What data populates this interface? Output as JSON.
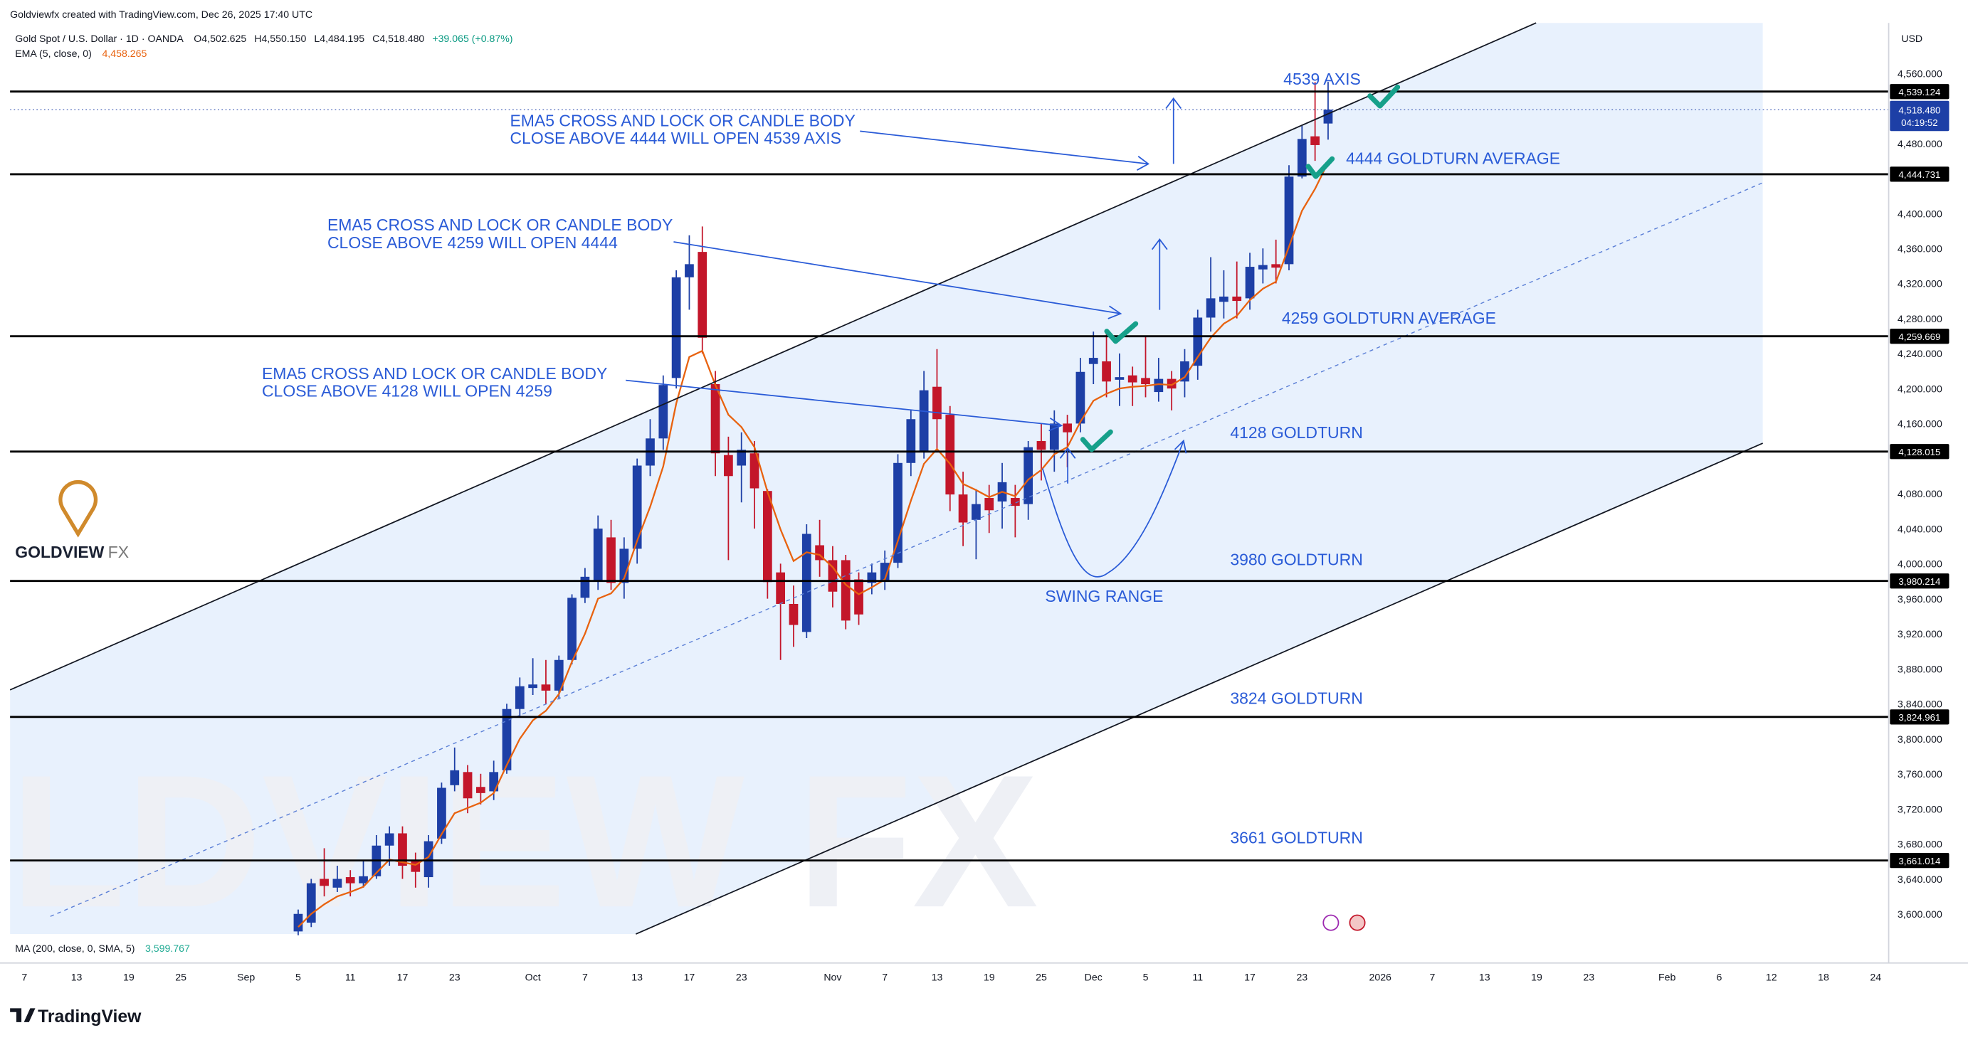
{
  "header": {
    "created": "Goldviewfx created with TradingView.com, Dec 26, 2025 17:40 UTC",
    "symbol": "Gold Spot / U.S. Dollar · 1D · OANDA",
    "ohlc": [
      "O4,502.625",
      "H4,550.150",
      "L4,484.195",
      "C4,518.480",
      "+39.065 (+0.87%)"
    ],
    "ema_legend": "EMA (5, close, 0)",
    "ema_value": "4,458.265",
    "currency": "USD",
    "ma_legend": "MA (200, close, 0, SMA, 5)",
    "ma_value": "3,599.767"
  },
  "brand": {
    "logo_main": "GOLDVIEW",
    "logo_fx": "FX",
    "watermark": "LDVIEW FX",
    "footer": "TradingView"
  },
  "chart_data": {
    "type": "candlestick",
    "open": [
      3580,
      3590,
      3640,
      3630,
      3642,
      3635,
      3643,
      3678,
      3692,
      3660,
      3642,
      3686,
      3747,
      3762,
      3745,
      3740,
      3764,
      3834,
      3858,
      3862,
      3855,
      3890,
      3961,
      3980,
      4030,
      3978,
      4017,
      4112,
      4143,
      4212,
      4327,
      4356,
      4205,
      4124,
      4112,
      4126,
      4083,
      3990,
      3954,
      3922,
      4021,
      4004,
      4004,
      3982,
      3978,
      3980,
      4001,
      4115,
      4129,
      4202,
      4170,
      4079,
      4050,
      4075,
      4071,
      4075,
      4068,
      4140,
      4130,
      4160,
      4160,
      4228,
      4231,
      4210,
      4215,
      4212,
      4196,
      4211,
      4208,
      4226,
      4281,
      4299,
      4305,
      4303,
      4336,
      4342,
      4342,
      4442,
      4488,
      4502.625
    ],
    "high": [
      3605,
      3640,
      3675,
      3655,
      3650,
      3660,
      3690,
      3700,
      3700,
      3670,
      3690,
      3750,
      3790,
      3770,
      3760,
      3775,
      3840,
      3870,
      3892,
      3890,
      3895,
      3965,
      3995,
      4055,
      4050,
      4030,
      4120,
      4165,
      4215,
      4335,
      4375,
      4385,
      4220,
      4145,
      4150,
      4140,
      4085,
      4000,
      3975,
      4045,
      4050,
      4020,
      4010,
      3990,
      4000,
      4015,
      4125,
      4175,
      4220,
      4245,
      4180,
      4105,
      4085,
      4090,
      4115,
      4090,
      4140,
      4160,
      4175,
      4170,
      4235,
      4265,
      4265,
      4240,
      4225,
      4260,
      4235,
      4220,
      4245,
      4290,
      4350,
      4335,
      4345,
      4355,
      4360,
      4370,
      4455,
      4500,
      4550,
      4550.15
    ],
    "low": [
      3575,
      3585,
      3620,
      3625,
      3620,
      3630,
      3640,
      3655,
      3640,
      3630,
      3630,
      3680,
      3740,
      3715,
      3725,
      3730,
      3760,
      3826,
      3850,
      3840,
      3845,
      3885,
      3955,
      3970,
      3970,
      3960,
      4000,
      4100,
      4130,
      4200,
      4290,
      4240,
      4100,
      4004,
      4070,
      4040,
      3960,
      3890,
      3905,
      3915,
      3985,
      3950,
      3925,
      3930,
      3965,
      3970,
      3995,
      4100,
      4120,
      4130,
      4060,
      4020,
      4005,
      4035,
      4040,
      4030,
      4050,
      4095,
      4105,
      4110,
      4150,
      4205,
      4190,
      4180,
      4180,
      4190,
      4185,
      4175,
      4190,
      4210,
      4265,
      4280,
      4280,
      4290,
      4320,
      4320,
      4335,
      4440,
      4460,
      4484.195
    ],
    "close": [
      3600,
      3635,
      3632,
      3640,
      3635,
      3643,
      3678,
      3692,
      3655,
      3648,
      3683,
      3744,
      3764,
      3732,
      3738,
      3762,
      3834,
      3860,
      3862,
      3855,
      3890,
      3961,
      3985,
      4040,
      3978,
      4017,
      4112,
      4143,
      4204,
      4327,
      4342,
      4258,
      4126,
      4100,
      4130,
      4086,
      3979,
      3954,
      3930,
      4034,
      4004,
      3968,
      3935,
      3942,
      3990,
      4001,
      4115,
      4165,
      4198,
      4165,
      4079,
      4047,
      4068,
      4061,
      4093,
      4066,
      4133,
      4130,
      4160,
      4150,
      4219,
      4235,
      4208,
      4213,
      4207,
      4205,
      4211,
      4200,
      4231,
      4281,
      4303,
      4305,
      4300,
      4339,
      4341,
      4338,
      4442,
      4485,
      4478,
      4518.48
    ],
    "ema_values": [
      3585,
      3600,
      3611,
      3620,
      3625,
      3631,
      3647,
      3662,
      3659,
      3656,
      3665,
      3691,
      3715,
      3721,
      3727,
      3738,
      3770,
      3800,
      3821,
      3832,
      3851,
      3888,
      3920,
      3960,
      3966,
      3983,
      4026,
      4065,
      4111,
      4183,
      4236,
      4243,
      4204,
      4170,
      4156,
      4133,
      4082,
      4039,
      4003,
      4013,
      4010,
      3996,
      3976,
      3965,
      3973,
      3982,
      4026,
      4072,
      4114,
      4131,
      4114,
      4091,
      4084,
      4076,
      4082,
      4077,
      4096,
      4107,
      4125,
      4133,
      4162,
      4186,
      4194,
      4200,
      4202,
      4203,
      4205,
      4204,
      4213,
      4236,
      4258,
      4274,
      4283,
      4301,
      4314,
      4322,
      4362,
      4403,
      4428,
      4458.265
    ],
    "up_color": "#1d3fa6",
    "down_color": "#c3162a",
    "ema_color": "#e8620f",
    "xlim": [
      -22.1,
      122
    ],
    "xticks": [
      {
        "value": -21,
        "label": "7"
      },
      {
        "value": -17,
        "label": "13"
      },
      {
        "value": -13,
        "label": "19"
      },
      {
        "value": -9,
        "label": "25"
      },
      {
        "value": -4,
        "label": "Sep"
      },
      {
        "value": 0,
        "label": "5"
      },
      {
        "value": 4,
        "label": "11"
      },
      {
        "value": 8,
        "label": "17"
      },
      {
        "value": 12,
        "label": "23"
      },
      {
        "value": 18,
        "label": "Oct"
      },
      {
        "value": 22,
        "label": "7"
      },
      {
        "value": 26,
        "label": "13"
      },
      {
        "value": 30,
        "label": "17"
      },
      {
        "value": 34,
        "label": "23"
      },
      {
        "value": 41,
        "label": "Nov"
      },
      {
        "value": 45,
        "label": "7"
      },
      {
        "value": 49,
        "label": "13"
      },
      {
        "value": 53,
        "label": "19"
      },
      {
        "value": 57,
        "label": "25"
      },
      {
        "value": 61,
        "label": "Dec"
      },
      {
        "value": 65,
        "label": "5"
      },
      {
        "value": 69,
        "label": "11"
      },
      {
        "value": 73,
        "label": "17"
      },
      {
        "value": 77,
        "label": "23"
      },
      {
        "value": 83,
        "label": "2026"
      },
      {
        "value": 87,
        "label": "7"
      },
      {
        "value": 91,
        "label": "13"
      },
      {
        "value": 95,
        "label": "19"
      },
      {
        "value": 99,
        "label": "23"
      },
      {
        "value": 105,
        "label": "Feb"
      },
      {
        "value": 109,
        "label": "6"
      },
      {
        "value": 113,
        "label": "12"
      },
      {
        "value": 117,
        "label": "18"
      },
      {
        "value": 121,
        "label": "24"
      }
    ],
    "ylim": [
      3575.6,
      4617.5
    ],
    "yticks": [
      {
        "value": 4560,
        "label": "4,560.000"
      },
      {
        "value": 4480,
        "label": "4,480.000"
      },
      {
        "value": 4400,
        "label": "4,400.000"
      },
      {
        "value": 4360,
        "label": "4,360.000"
      },
      {
        "value": 4320,
        "label": "4,320.000"
      },
      {
        "value": 4280,
        "label": "4,280.000"
      },
      {
        "value": 4240,
        "label": "4,240.000"
      },
      {
        "value": 4200,
        "label": "4,200.000"
      },
      {
        "value": 4160,
        "label": "4,160.000"
      },
      {
        "value": 4080,
        "label": "4,080.000"
      },
      {
        "value": 4040,
        "label": "4,040.000"
      },
      {
        "value": 4000,
        "label": "4,000.000"
      },
      {
        "value": 3960,
        "label": "3,960.000"
      },
      {
        "value": 3920,
        "label": "3,920.000"
      },
      {
        "value": 3880,
        "label": "3,880.000"
      },
      {
        "value": 3840,
        "label": "3,840.000"
      },
      {
        "value": 3800,
        "label": "3,800.000"
      },
      {
        "value": 3760,
        "label": "3,760.000"
      },
      {
        "value": 3720,
        "label": "3,720.000"
      },
      {
        "value": 3680,
        "label": "3,680.000"
      },
      {
        "value": 3640,
        "label": "3,640.000"
      },
      {
        "value": 3600,
        "label": "3,600.000"
      }
    ],
    "grid": false,
    "levels": [
      {
        "value": 4539.124,
        "label": "4,539.124",
        "text": "4539 AXIS"
      },
      {
        "value": 4444.731,
        "label": "4,444.731",
        "text": "4444 GOLDTURN AVERAGE"
      },
      {
        "value": 4259.669,
        "label": "4,259.669",
        "text": "4259 GOLDTURN AVERAGE"
      },
      {
        "value": 4128.015,
        "label": "4,128.015",
        "text": "4128 GOLDTURN"
      },
      {
        "value": 3980.214,
        "label": "3,980.214",
        "text": "3980 GOLDTURN"
      },
      {
        "value": 3824.961,
        "label": "3,824.961",
        "text": "3824 GOLDTURN"
      },
      {
        "value": 3661.014,
        "label": "3,661.014",
        "text": "3661 GOLDTURN"
      }
    ],
    "last": {
      "value": 4518.48,
      "label": "4,518.480",
      "countdown": "04:19:52"
    },
    "annotations": [
      [
        "EMA5 CROSS AND LOCK OR CANDLE BODY",
        "CLOSE ABOVE 4444 WILL OPEN 4539 AXIS"
      ],
      [
        "EMA5 CROSS AND LOCK OR CANDLE BODY",
        "CLOSE ABOVE 4259 WILL OPEN 4444"
      ],
      [
        "EMA5 CROSS AND LOCK OR CANDLE BODY",
        "CLOSE ABOVE 4128 WILL OPEN 4259"
      ]
    ],
    "swing_label": "SWING RANGE"
  }
}
